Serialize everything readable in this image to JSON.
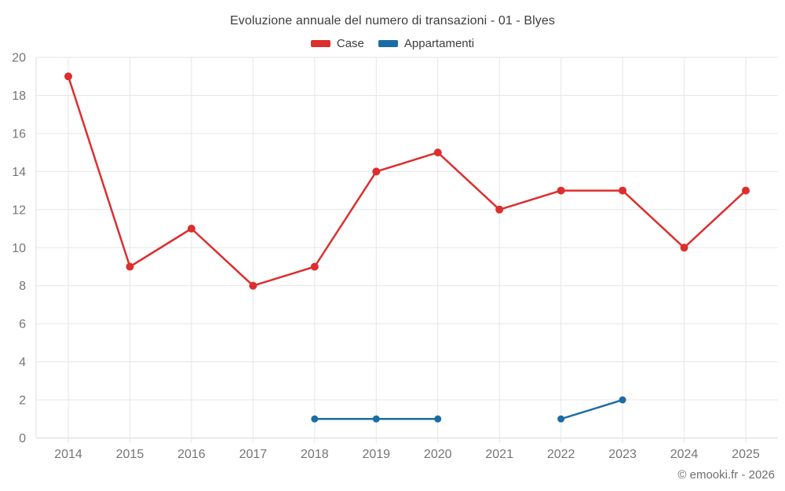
{
  "page": {
    "footer": "© emooki.fr - 2026"
  },
  "chart_data": {
    "type": "line",
    "title": "Evoluzione annuale del numero di transazioni - 01 - Blyes",
    "categories": [
      "2014",
      "2015",
      "2016",
      "2017",
      "2018",
      "2019",
      "2020",
      "2021",
      "2022",
      "2023",
      "2024",
      "2025"
    ],
    "xlabel": "",
    "ylabel": "",
    "ylim": [
      0,
      20
    ],
    "yticks": [
      0,
      2,
      4,
      6,
      8,
      10,
      12,
      14,
      16,
      18,
      20
    ],
    "grid": true,
    "legend_position": "top",
    "series": [
      {
        "name": "Case",
        "color": "#dd2e2e",
        "values": [
          19,
          9,
          11,
          8,
          9,
          14,
          15,
          12,
          13,
          13,
          10,
          13
        ]
      },
      {
        "name": "Appartamenti",
        "color": "#1a6da4",
        "values": [
          null,
          null,
          null,
          null,
          1,
          1,
          1,
          null,
          1,
          2,
          null,
          null
        ]
      }
    ]
  }
}
